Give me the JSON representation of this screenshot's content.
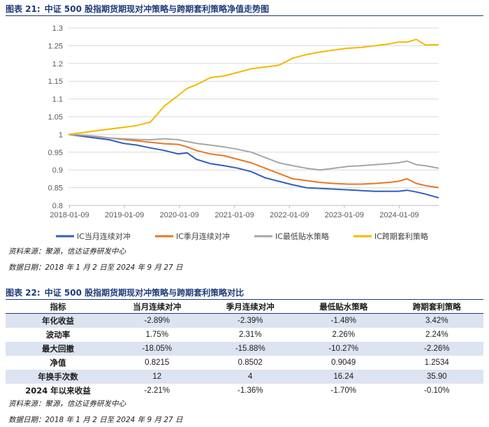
{
  "figure": {
    "label": "图表 21:",
    "title": "中证 500 股指期货期现对冲策略与跨期套利策略净值走势图",
    "source": "资料来源：聚源，信达证券研发中心",
    "date_range": "数据日期：2018 年 1 月 2 日至 2024 年 9 月 27 日"
  },
  "table": {
    "label": "图表 22:",
    "title": "中证 500 股指期货期现对冲策略与跨期套利策略对比",
    "headers": [
      "指标",
      "当月连续对冲",
      "季月连续对冲",
      "最低贴水策略",
      "跨期套利策略"
    ],
    "rows": [
      [
        "年化收益",
        "-2.89%",
        "-2.39%",
        "-1.48%",
        "3.42%"
      ],
      [
        "波动率",
        "1.75%",
        "2.31%",
        "2.26%",
        "2.24%"
      ],
      [
        "最大回撤",
        "-18.05%",
        "-15.88%",
        "-10.27%",
        "-2.26%"
      ],
      [
        "净值",
        "0.8215",
        "0.8502",
        "0.9049",
        "1.2534"
      ],
      [
        "年换手次数",
        "12",
        "4",
        "16.24",
        "35.90"
      ],
      [
        "2024 年以来收益",
        "-2.21%",
        "-1.36%",
        "-1.70%",
        "-0.10%"
      ]
    ],
    "source": "资料来源：聚源，信达证券研发中心",
    "date_range": "数据日期：2018 年 1 月 2 日至 2024 年 9 月 27 日"
  },
  "chart_data": {
    "type": "line",
    "title": "",
    "xlabel": "",
    "ylabel": "",
    "x_ticks": [
      "2018-01-09",
      "2019-01-09",
      "2020-01-09",
      "2021-01-09",
      "2022-01-09",
      "2023-01-09",
      "2024-01-09"
    ],
    "y_ticks": [
      "0.8",
      "0.85",
      "0.9",
      "0.95",
      "1",
      "1.05",
      "1.1",
      "1.15",
      "1.2",
      "1.25",
      "1.3"
    ],
    "ylim": [
      0.8,
      1.3
    ],
    "xlim": [
      "2018-01-02",
      "2024-09-27"
    ],
    "grid": "horizontal",
    "legend_position": "bottom",
    "series": [
      {
        "name": "IC当月连续对冲",
        "color": "#2f5fbf",
        "points": [
          [
            "2018-01-02",
            1.0
          ],
          [
            "2018-04-01",
            0.995
          ],
          [
            "2018-07-01",
            0.99
          ],
          [
            "2018-10-01",
            0.985
          ],
          [
            "2019-01-01",
            0.975
          ],
          [
            "2019-04-01",
            0.97
          ],
          [
            "2019-07-01",
            0.962
          ],
          [
            "2019-10-01",
            0.955
          ],
          [
            "2020-01-01",
            0.945
          ],
          [
            "2020-03-01",
            0.948
          ],
          [
            "2020-05-01",
            0.93
          ],
          [
            "2020-08-01",
            0.918
          ],
          [
            "2020-11-01",
            0.912
          ],
          [
            "2021-02-01",
            0.905
          ],
          [
            "2021-05-01",
            0.895
          ],
          [
            "2021-08-01",
            0.878
          ],
          [
            "2021-11-01",
            0.868
          ],
          [
            "2022-02-01",
            0.858
          ],
          [
            "2022-05-01",
            0.85
          ],
          [
            "2022-08-01",
            0.848
          ],
          [
            "2022-11-01",
            0.846
          ],
          [
            "2023-02-01",
            0.844
          ],
          [
            "2023-05-01",
            0.842
          ],
          [
            "2023-08-01",
            0.84
          ],
          [
            "2023-11-01",
            0.84
          ],
          [
            "2024-01-01",
            0.84
          ],
          [
            "2024-03-01",
            0.843
          ],
          [
            "2024-05-01",
            0.838
          ],
          [
            "2024-07-01",
            0.832
          ],
          [
            "2024-09-27",
            0.8215
          ]
        ]
      },
      {
        "name": "IC季月连续对冲",
        "color": "#e87722",
        "points": [
          [
            "2018-01-02",
            1.0
          ],
          [
            "2018-04-01",
            0.998
          ],
          [
            "2018-07-01",
            0.994
          ],
          [
            "2018-10-01",
            0.99
          ],
          [
            "2019-01-01",
            0.986
          ],
          [
            "2019-04-01",
            0.982
          ],
          [
            "2019-07-01",
            0.978
          ],
          [
            "2019-10-01",
            0.974
          ],
          [
            "2020-01-01",
            0.972
          ],
          [
            "2020-03-01",
            0.965
          ],
          [
            "2020-05-01",
            0.955
          ],
          [
            "2020-08-01",
            0.945
          ],
          [
            "2020-11-01",
            0.94
          ],
          [
            "2021-02-01",
            0.93
          ],
          [
            "2021-05-01",
            0.92
          ],
          [
            "2021-08-01",
            0.905
          ],
          [
            "2021-11-01",
            0.89
          ],
          [
            "2022-02-01",
            0.875
          ],
          [
            "2022-05-01",
            0.87
          ],
          [
            "2022-08-01",
            0.865
          ],
          [
            "2022-11-01",
            0.862
          ],
          [
            "2023-02-01",
            0.86
          ],
          [
            "2023-05-01",
            0.86
          ],
          [
            "2023-08-01",
            0.862
          ],
          [
            "2023-11-01",
            0.865
          ],
          [
            "2024-01-01",
            0.868
          ],
          [
            "2024-03-01",
            0.875
          ],
          [
            "2024-05-01",
            0.862
          ],
          [
            "2024-07-01",
            0.856
          ],
          [
            "2024-09-27",
            0.8502
          ]
        ]
      },
      {
        "name": "IC最低贴水策略",
        "color": "#a6a6a6",
        "points": [
          [
            "2018-01-02",
            1.0
          ],
          [
            "2018-04-01",
            0.998
          ],
          [
            "2018-07-01",
            0.995
          ],
          [
            "2018-10-01",
            0.99
          ],
          [
            "2019-01-01",
            0.988
          ],
          [
            "2019-04-01",
            0.986
          ],
          [
            "2019-07-01",
            0.985
          ],
          [
            "2019-10-01",
            0.988
          ],
          [
            "2020-01-01",
            0.985
          ],
          [
            "2020-03-01",
            0.98
          ],
          [
            "2020-05-01",
            0.975
          ],
          [
            "2020-08-01",
            0.97
          ],
          [
            "2020-11-01",
            0.965
          ],
          [
            "2021-02-01",
            0.958
          ],
          [
            "2021-05-01",
            0.95
          ],
          [
            "2021-08-01",
            0.935
          ],
          [
            "2021-11-01",
            0.92
          ],
          [
            "2022-02-01",
            0.912
          ],
          [
            "2022-05-01",
            0.905
          ],
          [
            "2022-08-01",
            0.9
          ],
          [
            "2022-11-01",
            0.905
          ],
          [
            "2023-02-01",
            0.91
          ],
          [
            "2023-05-01",
            0.912
          ],
          [
            "2023-08-01",
            0.915
          ],
          [
            "2023-11-01",
            0.918
          ],
          [
            "2024-01-01",
            0.92
          ],
          [
            "2024-03-01",
            0.925
          ],
          [
            "2024-05-01",
            0.915
          ],
          [
            "2024-07-01",
            0.912
          ],
          [
            "2024-09-27",
            0.9049
          ]
        ]
      },
      {
        "name": "IC跨期套利策略",
        "color": "#f5b800",
        "points": [
          [
            "2018-01-02",
            1.0
          ],
          [
            "2018-04-01",
            1.005
          ],
          [
            "2018-07-01",
            1.01
          ],
          [
            "2018-10-01",
            1.015
          ],
          [
            "2019-01-01",
            1.02
          ],
          [
            "2019-04-01",
            1.025
          ],
          [
            "2019-07-01",
            1.035
          ],
          [
            "2019-10-01",
            1.08
          ],
          [
            "2020-01-01",
            1.11
          ],
          [
            "2020-03-01",
            1.13
          ],
          [
            "2020-05-01",
            1.14
          ],
          [
            "2020-08-01",
            1.16
          ],
          [
            "2020-11-01",
            1.165
          ],
          [
            "2021-02-01",
            1.175
          ],
          [
            "2021-05-01",
            1.185
          ],
          [
            "2021-08-01",
            1.19
          ],
          [
            "2021-11-01",
            1.195
          ],
          [
            "2022-02-01",
            1.215
          ],
          [
            "2022-05-01",
            1.225
          ],
          [
            "2022-08-01",
            1.232
          ],
          [
            "2022-11-01",
            1.238
          ],
          [
            "2023-02-01",
            1.243
          ],
          [
            "2023-05-01",
            1.245
          ],
          [
            "2023-08-01",
            1.25
          ],
          [
            "2023-11-01",
            1.255
          ],
          [
            "2024-01-01",
            1.26
          ],
          [
            "2024-03-01",
            1.26
          ],
          [
            "2024-05-01",
            1.268
          ],
          [
            "2024-07-01",
            1.252
          ],
          [
            "2024-09-27",
            1.2534
          ]
        ]
      }
    ]
  }
}
